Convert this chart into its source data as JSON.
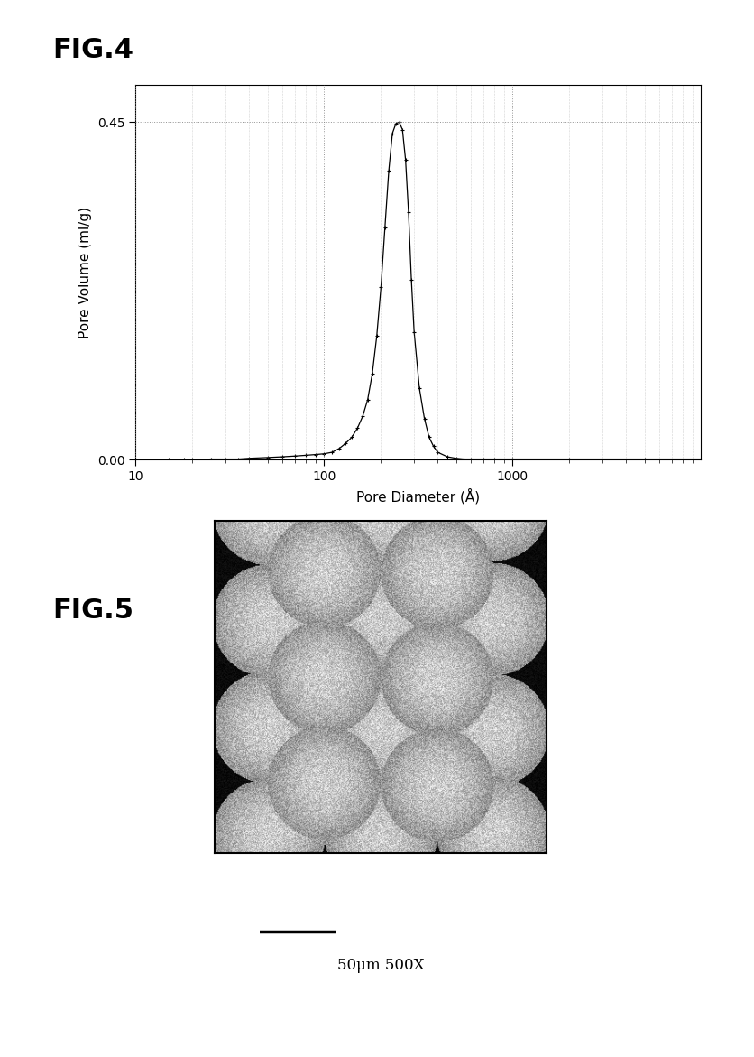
{
  "fig4_title": "FIG.4",
  "fig5_title": "FIG.5",
  "xlabel": "Pore Diameter (Å)",
  "ylabel": "Pore Volume (ml/g)",
  "xlim": [
    10,
    10000
  ],
  "ylim": [
    0.0,
    0.5
  ],
  "yticks": [
    0.0,
    0.45
  ],
  "xtick_labels": [
    "10",
    "100",
    "1000"
  ],
  "xtick_vals": [
    10,
    100,
    1000
  ],
  "scale_bar_label": "50μm 500X",
  "curve_x": [
    10,
    15,
    18,
    20,
    25,
    30,
    35,
    40,
    50,
    60,
    70,
    80,
    90,
    100,
    110,
    120,
    130,
    140,
    150,
    160,
    170,
    180,
    190,
    200,
    210,
    220,
    230,
    240,
    250,
    260,
    270,
    280,
    290,
    300,
    320,
    340,
    360,
    380,
    400,
    450,
    500,
    550,
    600,
    700,
    800,
    1000,
    2000,
    5000,
    10000
  ],
  "curve_y": [
    0.0,
    0.0,
    0.0,
    0.0,
    0.001,
    0.001,
    0.001,
    0.002,
    0.003,
    0.004,
    0.005,
    0.006,
    0.007,
    0.008,
    0.01,
    0.015,
    0.022,
    0.03,
    0.042,
    0.058,
    0.08,
    0.115,
    0.165,
    0.23,
    0.31,
    0.385,
    0.435,
    0.448,
    0.45,
    0.44,
    0.4,
    0.33,
    0.24,
    0.17,
    0.095,
    0.055,
    0.03,
    0.018,
    0.01,
    0.004,
    0.002,
    0.001,
    0.001,
    0.001,
    0.001,
    0.001,
    0.001,
    0.001,
    0.001
  ],
  "background_color": "#ffffff",
  "line_color": "#000000",
  "grid_color": "#888888"
}
